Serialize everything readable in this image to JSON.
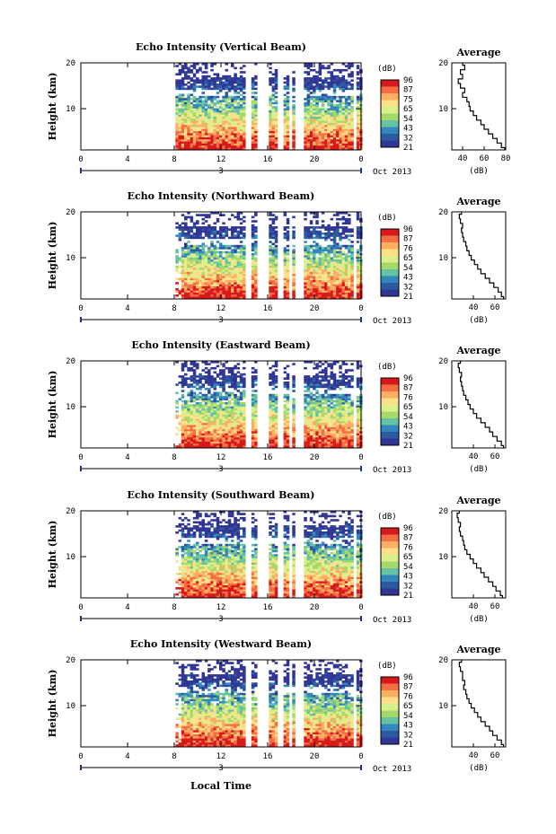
{
  "figure": {
    "xlabel": "Local Time",
    "date_label": "Oct 2013",
    "day_label": "3"
  },
  "colorbar": {
    "unit_label": "(dB)",
    "colors": [
      "#d7191c",
      "#f46d43",
      "#fdae61",
      "#fee08b",
      "#d9ef8b",
      "#a6d96a",
      "#66c2a5",
      "#3288bd",
      "#2c5aa0",
      "#313695"
    ]
  },
  "chart_data": [
    {
      "type": "heatmap",
      "title": "Echo Intensity (Vertical Beam)",
      "ylabel": "Height (km)",
      "xlim": [
        0,
        24
      ],
      "ylim": [
        1,
        20
      ],
      "xticks": [
        "0",
        "4",
        "8",
        "12",
        "16",
        "20",
        "0"
      ],
      "yticks": [
        "10",
        "20"
      ],
      "colorbar_ticks": [
        "96",
        "87",
        "75",
        "65",
        "54",
        "43",
        "32",
        "21"
      ],
      "profile": {
        "title": "Average",
        "xlabel": "(dB)",
        "xlim": [
          30,
          80
        ],
        "xticks": [
          "40",
          "60",
          "80"
        ],
        "heights": [
          1,
          2,
          3,
          4,
          5,
          6,
          7,
          8,
          9,
          10,
          11,
          12,
          13,
          14,
          15,
          16,
          17,
          18,
          19,
          20
        ],
        "values": [
          79,
          76,
          72,
          68,
          64,
          60,
          57,
          53,
          50,
          47,
          46,
          44,
          40,
          42,
          38,
          36,
          40,
          38,
          42,
          40
        ]
      }
    },
    {
      "type": "heatmap",
      "title": "Echo Intensity (Northward Beam)",
      "ylabel": "Height (km)",
      "xlim": [
        0,
        24
      ],
      "ylim": [
        1,
        20
      ],
      "xticks": [
        "0",
        "4",
        "8",
        "12",
        "16",
        "20",
        "0"
      ],
      "yticks": [
        "10",
        "20"
      ],
      "colorbar_ticks": [
        "96",
        "87",
        "76",
        "65",
        "54",
        "43",
        "32",
        "21"
      ],
      "profile": {
        "title": "Average",
        "xlabel": "(dB)",
        "xlim": [
          20,
          70
        ],
        "xticks": [
          "40",
          "60"
        ],
        "heights": [
          1,
          2,
          3,
          4,
          5,
          6,
          7,
          8,
          9,
          10,
          11,
          12,
          13,
          14,
          15,
          16,
          17,
          18,
          19,
          20
        ],
        "values": [
          68,
          66,
          63,
          59,
          55,
          51,
          47,
          44,
          41,
          38,
          36,
          34,
          33,
          31,
          30,
          29,
          30,
          28,
          27,
          29
        ]
      }
    },
    {
      "type": "heatmap",
      "title": "Echo Intensity (Eastward Beam)",
      "ylabel": "Height (km)",
      "xlim": [
        0,
        24
      ],
      "ylim": [
        1,
        20
      ],
      "xticks": [
        "0",
        "4",
        "8",
        "12",
        "16",
        "20",
        "0"
      ],
      "yticks": [
        "10",
        "20"
      ],
      "colorbar_ticks": [
        "96",
        "87",
        "76",
        "65",
        "54",
        "43",
        "32",
        "21"
      ],
      "profile": {
        "title": "Average",
        "xlabel": "(dB)",
        "xlim": [
          20,
          70
        ],
        "xticks": [
          "40",
          "60"
        ],
        "heights": [
          1,
          2,
          3,
          4,
          5,
          6,
          7,
          8,
          9,
          10,
          11,
          12,
          13,
          14,
          15,
          16,
          17,
          18,
          19,
          20
        ],
        "values": [
          68,
          66,
          62,
          58,
          55,
          51,
          47,
          43,
          40,
          37,
          35,
          33,
          31,
          30,
          29,
          28,
          29,
          27,
          26,
          28
        ]
      }
    },
    {
      "type": "heatmap",
      "title": "Echo Intensity (Southward Beam)",
      "ylabel": "Height (km)",
      "xlim": [
        0,
        24
      ],
      "ylim": [
        1,
        20
      ],
      "xticks": [
        "0",
        "4",
        "8",
        "12",
        "16",
        "20",
        "0"
      ],
      "yticks": [
        "10",
        "20"
      ],
      "colorbar_ticks": [
        "96",
        "87",
        "76",
        "65",
        "54",
        "43",
        "32",
        "21"
      ],
      "profile": {
        "title": "Average",
        "xlabel": "(dB)",
        "xlim": [
          20,
          70
        ],
        "xticks": [
          "40",
          "60"
        ],
        "heights": [
          1,
          2,
          3,
          4,
          5,
          6,
          7,
          8,
          9,
          10,
          11,
          12,
          13,
          14,
          15,
          16,
          17,
          18,
          19,
          20
        ],
        "values": [
          67,
          65,
          61,
          58,
          54,
          50,
          47,
          43,
          40,
          37,
          34,
          32,
          31,
          30,
          28,
          27,
          28,
          26,
          25,
          27
        ]
      }
    },
    {
      "type": "heatmap",
      "title": "Echo Intensity (Westward Beam)",
      "ylabel": "Height (km)",
      "xlim": [
        0,
        24
      ],
      "ylim": [
        1,
        20
      ],
      "xticks": [
        "0",
        "4",
        "8",
        "12",
        "16",
        "20",
        "0"
      ],
      "yticks": [
        "10",
        "20"
      ],
      "colorbar_ticks": [
        "96",
        "87",
        "76",
        "65",
        "54",
        "43",
        "32",
        "21"
      ],
      "profile": {
        "title": "Average",
        "xlabel": "(dB)",
        "xlim": [
          20,
          70
        ],
        "xticks": [
          "40",
          "60"
        ],
        "heights": [
          1,
          2,
          3,
          4,
          5,
          6,
          7,
          8,
          9,
          10,
          11,
          12,
          13,
          14,
          15,
          16,
          17,
          18,
          19,
          20
        ],
        "values": [
          68,
          66,
          62,
          58,
          55,
          51,
          47,
          44,
          41,
          38,
          36,
          34,
          33,
          31,
          32,
          30,
          30,
          28,
          27,
          29
        ]
      }
    }
  ]
}
